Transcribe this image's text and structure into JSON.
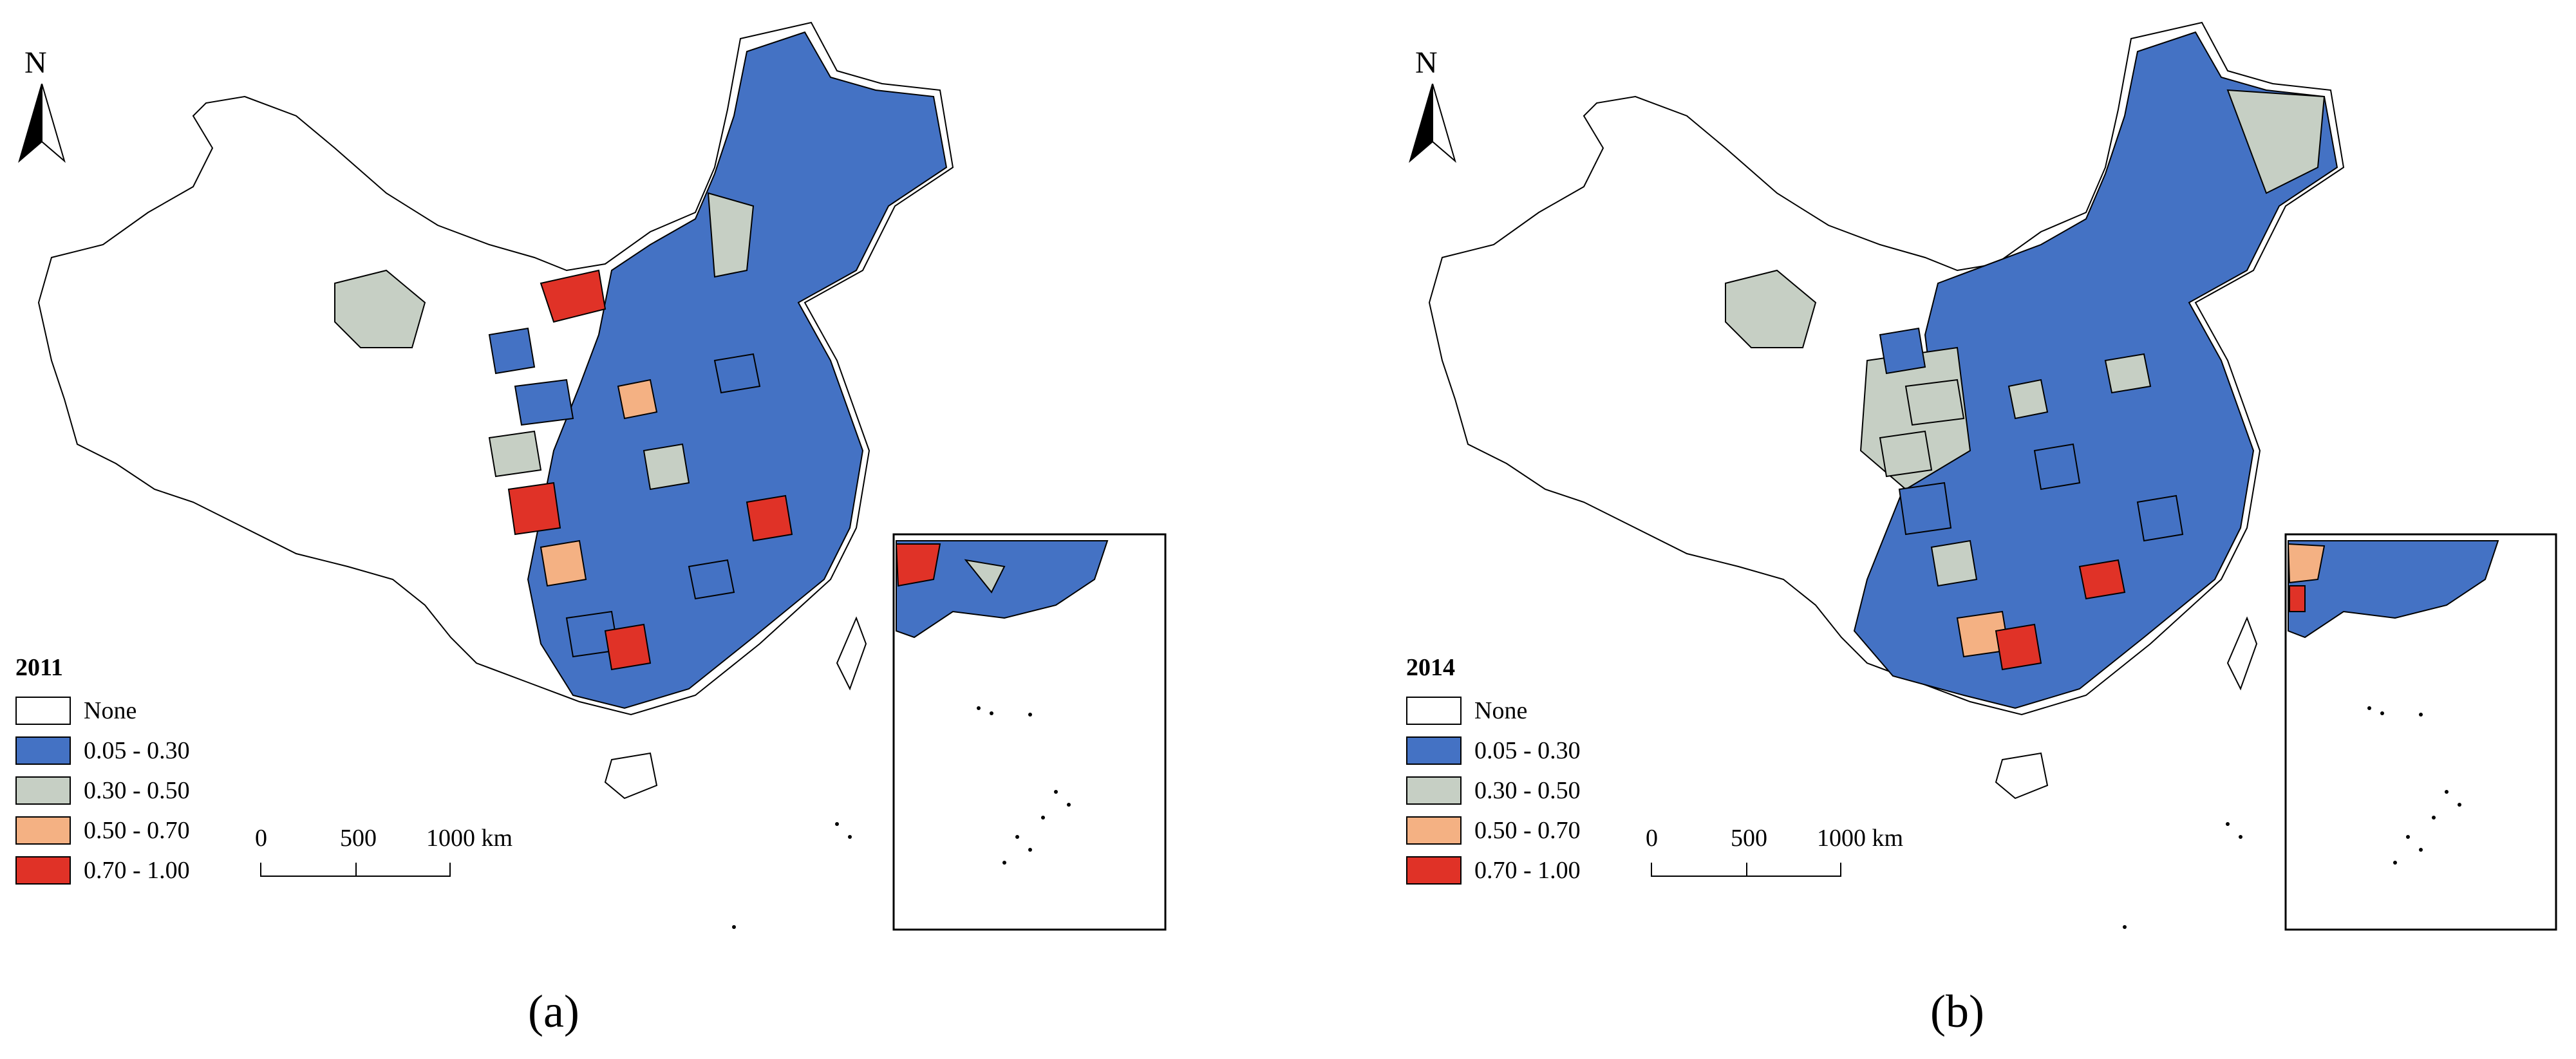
{
  "panels": [
    {
      "id": "a",
      "year": "2011",
      "caption": "(a)",
      "highlight_colors": [
        "#4472c4",
        "#4472c4",
        "#c6cfc4",
        "#e03227",
        "#f4b183",
        "#4472c4",
        "#e03227",
        "#c6cfc4",
        "#4472c4",
        "#e03227",
        "#4472c4",
        "#f4b183"
      ]
    },
    {
      "id": "b",
      "year": "2014",
      "caption": "(b)",
      "highlight_colors": [
        "#4472c4",
        "#c6cfc4",
        "#c6cfc4",
        "#4472c4",
        "#c6cfc4",
        "#f4b183",
        "#e03227",
        "#4472c4",
        "#c6cfc4",
        "#4472c4",
        "#e03227",
        "#c6cfc4"
      ]
    }
  ],
  "legend": {
    "items": [
      {
        "label": "None",
        "color": "#ffffff"
      },
      {
        "label": "0.05 - 0.30",
        "color": "#4472c4"
      },
      {
        "label": "0.30 - 0.50",
        "color": "#c6cfc4"
      },
      {
        "label": "0.50 - 0.70",
        "color": "#f4b183"
      },
      {
        "label": "0.70 - 1.00",
        "color": "#e03227"
      }
    ]
  },
  "scalebar": {
    "ticks": [
      "0",
      "500",
      "1000 km"
    ]
  },
  "north_label": "N"
}
